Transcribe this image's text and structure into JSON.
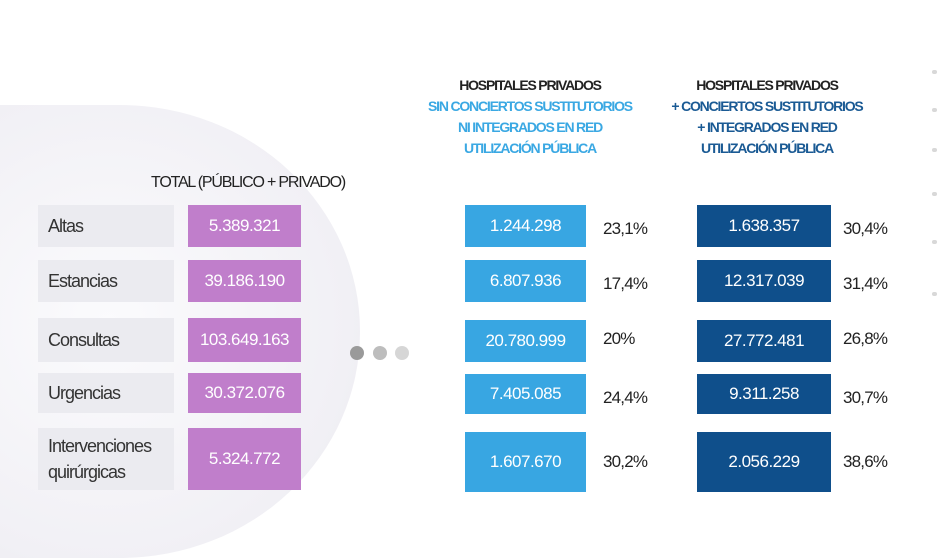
{
  "headers": {
    "total": "TOTAL (PÚBLICO + PRIVADO)",
    "col1": [
      "HOSPITALES PRIVADOS",
      "SIN CONCIERTOS SUSTITUTORIOS",
      "NI INTEGRADOS EN RED",
      "UTILIZACIÓN PÚBLICA"
    ],
    "col2": [
      "HOSPITALES PRIVADOS",
      "+ CONCIERTOS SUSTITUTORIOS",
      "+ INTEGRADOS EN RED",
      "UTILIZACIÓN PÚBLICA"
    ]
  },
  "colors": {
    "total": "#c07ecb",
    "col1": "#38a6e2",
    "col2": "#0f4f8b"
  },
  "rows": [
    {
      "label": "Altas",
      "total": "5.389.321",
      "col1": "1.244.298",
      "col1_pct": "23,1%",
      "col2": "1.638.357",
      "col2_pct": "30,4%"
    },
    {
      "label": "Estancias",
      "total": "39.186.190",
      "col1": "6.807.936",
      "col1_pct": "17,4%",
      "col2": "12.317.039",
      "col2_pct": "31,4%"
    },
    {
      "label": "Consultas",
      "total": "103.649.163",
      "col1": "20.780.999",
      "col1_pct": "20%",
      "col2": "27.772.481",
      "col2_pct": "26,8%"
    },
    {
      "label": "Urgencias",
      "total": "30.372.076",
      "col1": "7.405.085",
      "col1_pct": "24,4%",
      "col2": "9.311.258",
      "col2_pct": "30,7%"
    },
    {
      "label": "Intervenciones quirúrgicas",
      "total": "5.324.772",
      "col1": "1.607.670",
      "col1_pct": "30,2%",
      "col2": "2.056.229",
      "col2_pct": "38,6%"
    }
  ]
}
